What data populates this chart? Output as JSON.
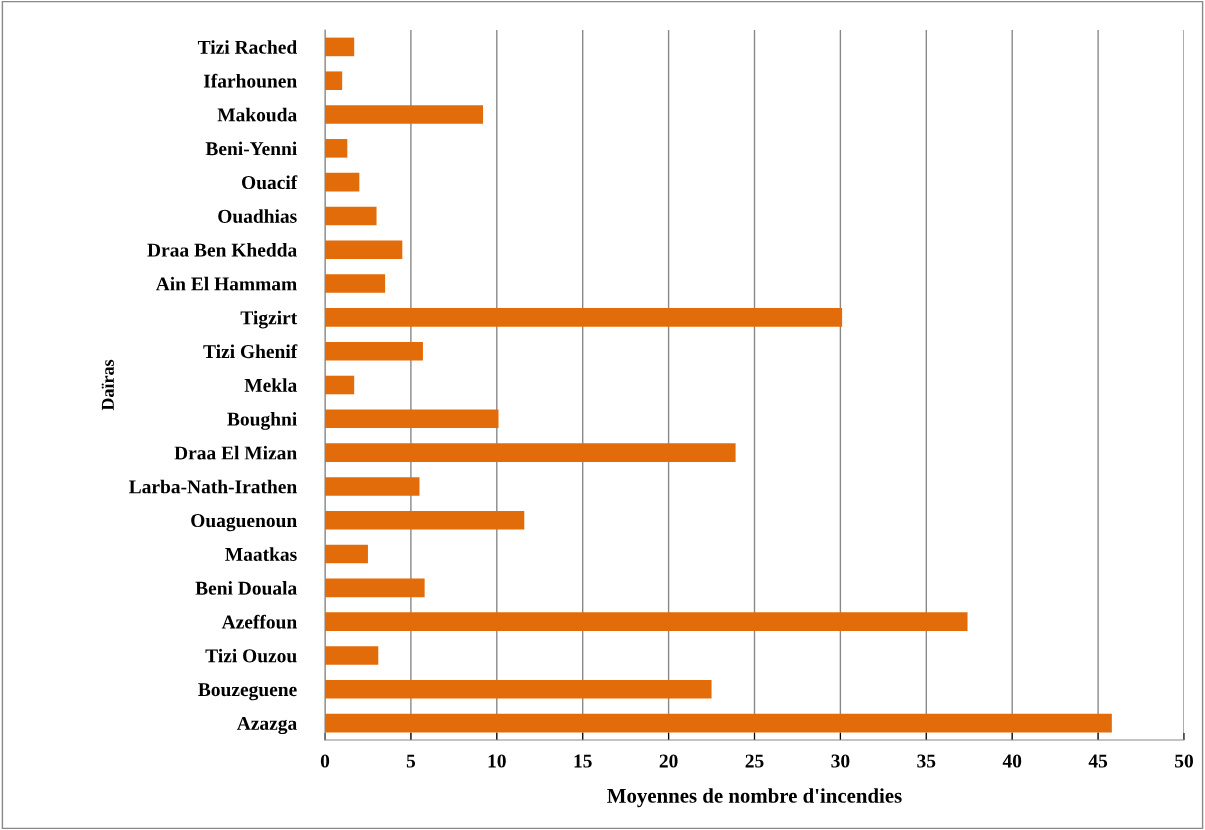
{
  "chart_data": {
    "type": "bar",
    "orientation": "horizontal",
    "xlabel": "Moyennes de nombre d'incendies",
    "ylabel": "Daïras",
    "categories": [
      "Tizi Rached",
      "Ifarhounen",
      "Makouda",
      "Beni-Yenni",
      "Ouacif",
      "Ouadhias",
      "Draa Ben Khedda",
      "Ain El Hammam",
      "Tigzirt",
      "Tizi Ghenif",
      "Mekla",
      "Boughni",
      "Draa El Mizan",
      "Larba-Nath-Irathen",
      "Ouaguenoun",
      "Maatkas",
      "Beni Douala",
      "Azeffoun",
      "Tizi Ouzou",
      "Bouzeguene",
      "Azazga"
    ],
    "values": [
      1.7,
      1.0,
      9.2,
      1.3,
      2.0,
      3.0,
      4.5,
      3.5,
      30.1,
      5.7,
      1.7,
      10.1,
      23.9,
      5.5,
      11.6,
      2.5,
      5.8,
      37.4,
      3.1,
      22.5,
      45.8
    ],
    "color": "#e36c0a",
    "xlim": [
      0,
      50
    ],
    "xticks": [
      0,
      5,
      10,
      15,
      20,
      25,
      30,
      35,
      40,
      45,
      50
    ],
    "grid": "x",
    "legend": false
  }
}
